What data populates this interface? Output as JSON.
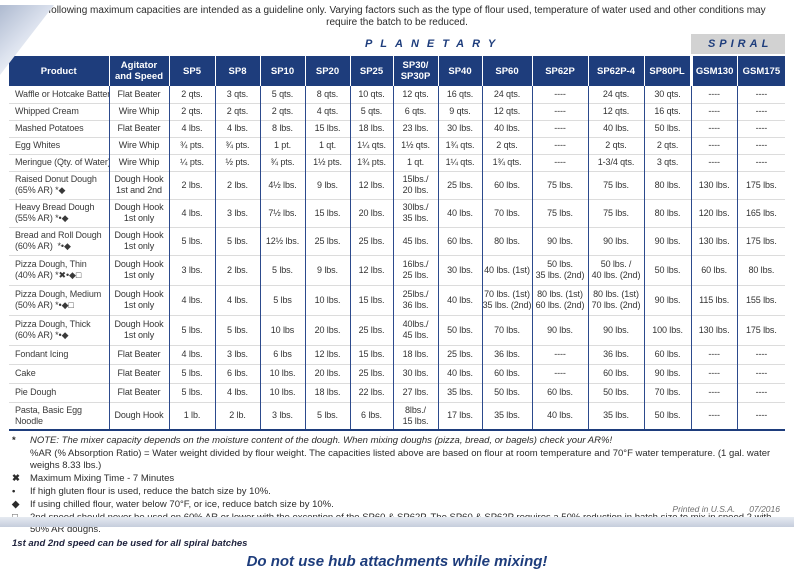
{
  "intro": "The following maximum capacities are intended as a guideline only. Varying factors such as the type of flour used, temperature of water used and other conditions may require the batch to be reduced.",
  "colors": {
    "header_navy": "#1e3d7c",
    "spiral_band_gray": "#d2d2d2",
    "warning_blue": "#1e3d7c"
  },
  "table": {
    "groups": {
      "planetary": "PLANETARY",
      "spiral": "SPIRAL"
    },
    "columns": [
      {
        "id": "product",
        "label": "Product"
      },
      {
        "id": "agitator",
        "label": "Agitator\nand Speed"
      },
      {
        "id": "sp5",
        "label": "SP5"
      },
      {
        "id": "sp8",
        "label": "SP8"
      },
      {
        "id": "sp10",
        "label": "SP10"
      },
      {
        "id": "sp20",
        "label": "SP20"
      },
      {
        "id": "sp25",
        "label": "SP25"
      },
      {
        "id": "sp30",
        "label": "SP30/\nSP30P"
      },
      {
        "id": "sp40",
        "label": "SP40"
      },
      {
        "id": "sp60",
        "label": "SP60"
      },
      {
        "id": "sp62p",
        "label": "SP62P"
      },
      {
        "id": "sp62p4",
        "label": "SP62P-4"
      },
      {
        "id": "sp80pl",
        "label": "SP80PL"
      },
      {
        "id": "gsm130",
        "label": "GSM130"
      },
      {
        "id": "gsm175",
        "label": "GSM175"
      }
    ],
    "rows": [
      {
        "product": "Waffle or Hotcake Batter",
        "agitator": "Flat Beater",
        "values": [
          "2 qts.",
          "3 qts.",
          "5 qts.",
          "8 qts.",
          "10 qts.",
          "12 qts.",
          "16 qts.",
          "24 qts.",
          "----",
          "24 qts.",
          "30 qts.",
          "----",
          "----"
        ]
      },
      {
        "product": "Whipped Cream",
        "agitator": "Wire Whip",
        "values": [
          "2 qts.",
          "2 qts.",
          "2 qts.",
          "4 qts.",
          "5 qts.",
          "6 qts.",
          "9 qts.",
          "12 qts.",
          "----",
          "12 qts.",
          "16 qts.",
          "----",
          "----"
        ]
      },
      {
        "product": "Mashed Potatoes",
        "agitator": "Flat Beater",
        "values": [
          "4 lbs.",
          "4 lbs.",
          "8 lbs.",
          "15 lbs.",
          "18 lbs.",
          "23 lbs.",
          "30 lbs.",
          "40 lbs.",
          "----",
          "40 lbs.",
          "50 lbs.",
          "----",
          "----"
        ]
      },
      {
        "product": "Egg Whites",
        "agitator": "Wire Whip",
        "values": [
          "¾ pts.",
          "¾ pts.",
          "1 pt.",
          "1 qt.",
          "1¼ qts.",
          "1½ qts.",
          "1¾ qts.",
          "2 qts.",
          "----",
          "2 qts.",
          "2 qts.",
          "----",
          "----"
        ]
      },
      {
        "product": "Meringue (Qty. of Water)",
        "agitator": "Wire Whip",
        "values": [
          "¼ pts.",
          "½ pts.",
          "¾ pts.",
          "1½ pts.",
          "1¾ pts.",
          "1 qt.",
          "1¼ qts.",
          "1¾ qts.",
          "----",
          "1-3/4 qts.",
          "3 qts.",
          "----",
          "----"
        ]
      },
      {
        "product": "Raised Donut Dough\n(65% AR) *◆",
        "agitator": "Dough Hook\n1st and 2nd",
        "values": [
          "2 lbs.",
          "2 lbs.",
          "4½ lbs.",
          "9 lbs.",
          "12 lbs.",
          "15lbs./\n20 lbs.",
          "25 lbs.",
          "60 lbs.",
          "75 lbs.",
          "75 lbs.",
          "80 lbs.",
          "130 lbs.",
          "175 lbs."
        ]
      },
      {
        "product": "Heavy Bread Dough\n(55% AR) *•◆",
        "agitator": "Dough Hook\n1st only",
        "values": [
          "4 lbs.",
          "3 lbs.",
          "7½ lbs.",
          "15 lbs.",
          "20 lbs.",
          "30lbs./\n35 lbs.",
          "40 lbs.",
          "70 lbs.",
          "75 lbs.",
          "75 lbs.",
          "80 lbs.",
          "120 lbs.",
          "165 lbs."
        ]
      },
      {
        "product": "Bread and Roll Dough\n(60% AR)  *•◆",
        "agitator": "Dough Hook\n1st only",
        "values": [
          "5 lbs.",
          "5 lbs.",
          "12½ lbs.",
          "25 lbs.",
          "25 lbs.",
          "45 lbs.",
          "60 lbs.",
          "80 lbs.",
          "90 lbs.",
          "90 lbs.",
          "90 lbs.",
          "130 lbs.",
          "175 lbs."
        ]
      },
      {
        "product": "Pizza Dough, Thin\n(40% AR) *✖•◆□",
        "agitator": "Dough Hook\n1st only",
        "values": [
          "3 lbs.",
          "2 lbs.",
          "5 lbs.",
          "9 lbs.",
          "12 lbs.",
          "16lbs./\n25 lbs.",
          "30 lbs.",
          "40 lbs. (1st)",
          "50 lbs.\n35 lbs. (2nd)",
          "50 lbs. /\n40 lbs. (2nd)",
          "50 lbs.",
          "60 lbs.",
          "80 lbs."
        ]
      },
      {
        "product": "Pizza Dough, Medium\n(50% AR) *•◆□",
        "agitator": "Dough Hook\n1st only",
        "values": [
          "4 lbs.",
          "4 lbs.",
          "5 lbs",
          "10 lbs.",
          "15 lbs.",
          "25lbs./\n36 lbs.",
          "40 lbs.",
          "70 lbs. (1st)\n35 lbs. (2nd)",
          "80 lbs. (1st)\n60 lbs. (2nd)",
          "80 lbs. (1st)\n70 lbs. (2nd)",
          "90 lbs.",
          "115 lbs.",
          "155 lbs."
        ]
      },
      {
        "product": "Pizza Dough, Thick\n(60% AR) *•◆",
        "agitator": "Dough Hook\n1st only",
        "values": [
          "5 lbs.",
          "5 lbs.",
          "10 lbs",
          "20 lbs.",
          "25 lbs.",
          "40lbs./\n45 lbs.",
          "50 lbs.",
          "70 lbs.",
          "90 lbs.",
          "90 lbs.",
          "100 lbs.",
          "130 lbs.",
          "175 lbs."
        ]
      },
      {
        "product": "Fondant Icing",
        "agitator": "Flat Beater",
        "values": [
          "4 lbs.",
          "3 lbs.",
          "6 lbs",
          "12 lbs.",
          "15 lbs.",
          "18 lbs.",
          "25 lbs.",
          "36 lbs.",
          "----",
          "36 lbs.",
          "60 lbs.",
          "----",
          "----"
        ]
      },
      {
        "product": "Cake",
        "agitator": "Flat Beater",
        "values": [
          "5 lbs.",
          "6 lbs.",
          "10 lbs.",
          "20 lbs.",
          "25 lbs.",
          "30 lbs.",
          "40 lbs.",
          "60 lbs.",
          "----",
          "60 lbs.",
          "90 lbs.",
          "----",
          "----"
        ]
      },
      {
        "product": "Pie Dough",
        "agitator": "Flat Beater",
        "values": [
          "5 lbs.",
          "4 lbs.",
          "10 lbs.",
          "18 lbs.",
          "22 lbs.",
          "27 lbs.",
          "35 lbs.",
          "50 lbs.",
          "60 lbs.",
          "50 lbs.",
          "70 lbs.",
          "----",
          "----"
        ]
      },
      {
        "product": "Pasta, Basic Egg\nNoodle",
        "agitator": "Dough Hook",
        "values": [
          "1 lb.",
          "2 lb.",
          "3 lbs.",
          "5 lbs.",
          "6 lbs.",
          "8lbs./\n15 lbs.",
          "17 lbs.",
          "35 lbs.",
          "40 lbs.",
          "35 lbs.",
          "50 lbs.",
          "----",
          "----"
        ]
      }
    ]
  },
  "footnotes": [
    {
      "symbol": "*",
      "italic": true,
      "text": "NOTE: The mixer capacity depends on the moisture content of the dough.  When mixing doughs (pizza, bread, or bagels) check your AR%!"
    },
    {
      "symbol": "",
      "italic": false,
      "text": "%AR (% Absorption Ratio) = Water weight divided by flour weight. The capacities listed above are based on flour at room temperature and 70°F water temperature. (1 gal. water weighs 8.33 lbs.)"
    },
    {
      "symbol": "✖",
      "italic": false,
      "text": "Maximum Mixing Time - 7 Minutes"
    },
    {
      "symbol": "•",
      "italic": false,
      "text": "If high gluten flour is used, reduce the batch size by 10%."
    },
    {
      "symbol": "◆",
      "italic": false,
      "text": "If using chilled flour, water below 70°F, or ice, reduce batch size by 10%."
    },
    {
      "symbol": "□",
      "italic": false,
      "text": "2nd speed should never be used on 60% AR or lower with the exception of the SP60 & SP62P. The SP60 & SP62P requires a 50% reduction in batch size to mix in speed 2 with 50% AR doughs."
    }
  ],
  "spiral_note": "1st and 2nd speed can be used for all spiral batches",
  "warning": "Do not use hub attachments while mixing!",
  "printed": {
    "label": "Printed in U.S.A.",
    "date": "07/2016"
  }
}
